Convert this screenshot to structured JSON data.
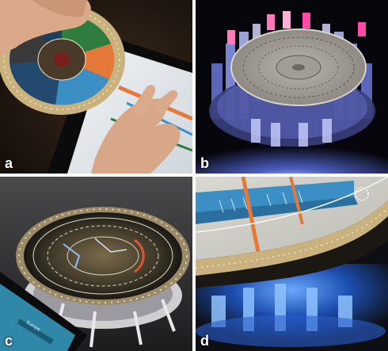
{
  "panels": [
    {
      "id": "a",
      "label": "a"
    },
    {
      "id": "b",
      "label": "b"
    },
    {
      "id": "c",
      "label": "c"
    },
    {
      "id": "d",
      "label": "d"
    }
  ],
  "tablet_c": {
    "row_label": "Europe"
  },
  "colors": {
    "wood_ring": "#c9b27e",
    "blue_ui": "#3b8fc4",
    "orange_accent": "#e5793a",
    "green_sector": "#2f7d3e",
    "glow_blue": "#4a7dff",
    "glow_pink": "#ff4aa8"
  }
}
